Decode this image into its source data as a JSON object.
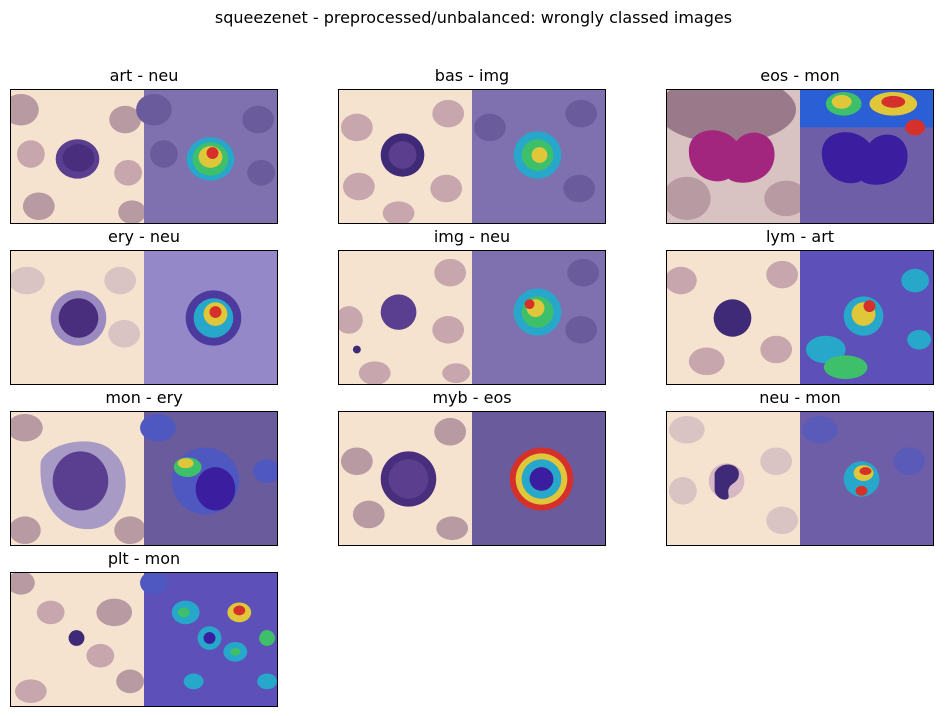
{
  "figure": {
    "title": "squeezenet - preprocessed/unbalanced: wrongly classed images"
  },
  "panels": [
    {
      "title": "art - neu",
      "cell": "art"
    },
    {
      "title": "bas - img",
      "cell": "bas"
    },
    {
      "title": "eos - mon",
      "cell": "eos"
    },
    {
      "title": "ery - neu",
      "cell": "ery"
    },
    {
      "title": "img - neu",
      "cell": "img"
    },
    {
      "title": "lym - art",
      "cell": "lym"
    },
    {
      "title": "mon - ery",
      "cell": "mon"
    },
    {
      "title": "myb - eos",
      "cell": "myb"
    },
    {
      "title": "neu - mon",
      "cell": "neu"
    },
    {
      "title": "plt - mon",
      "cell": "plt"
    }
  ],
  "colors": {
    "background_smear": "#f6e3cf",
    "overlay_tint": "#6f5ea8",
    "rbc": "#b89aa2",
    "nucleus": "#3f2a78"
  }
}
